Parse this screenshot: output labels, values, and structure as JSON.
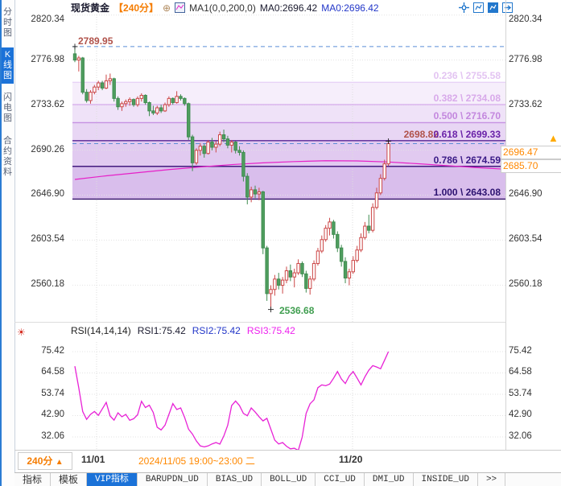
{
  "colors": {
    "accent_blue": "#1b72d8",
    "orange": "#ff8800",
    "period_orange": "#f57c00",
    "up_red": "#cc4747",
    "down_green": "#4f9e5f",
    "down_green_stroke": "#3f8c50",
    "ma_magenta": "#e620c8",
    "rsi_magenta": "#e822d6",
    "dashed_blue": "#5b8dd6",
    "swing_red": "#b0524a",
    "swing_green": "#3f9e4f",
    "grid": "#e3e3e3"
  },
  "sidebar": {
    "items": [
      {
        "label": "分时图",
        "active": false
      },
      {
        "label": "K线图",
        "active": true
      },
      {
        "label": "闪电图",
        "active": false
      },
      {
        "label": "合约资料",
        "active": false
      }
    ]
  },
  "header": {
    "symbol": "现货黄金",
    "period": "【240分】",
    "plus_icon": "⊕",
    "ma_label": "MA1(0,0,200,0)",
    "ma0_a": "MA0:2696.42",
    "ma0_b": "MA0:2696.42",
    "toolbar_icons": [
      "crosshair-icon",
      "zoom-area-icon",
      "zoom-in-icon",
      "shift-right-icon"
    ]
  },
  "price_tags": {
    "swing_high": "2789.95",
    "last_high": "2698.82",
    "swing_low": "2536.68",
    "current_price": "2696.47",
    "secondary_price": "2685.70",
    "arrow": "▲"
  },
  "rsi_header": {
    "params": "RSI(14,14,14)",
    "rsi1": "RSI1:75.42",
    "rsi2": "RSI2:75.42",
    "rsi3": "RSI3:75.42",
    "settings_icon": "☀"
  },
  "xaxis": {
    "period_label": "240分",
    "period_arrow": "▲",
    "left": "11/01",
    "mid": "2024/11/05 19:00~23:00 二",
    "right": "11/20"
  },
  "tabs": [
    {
      "label": "指标",
      "active": false
    },
    {
      "label": "模板",
      "active": false
    },
    {
      "label": "VIP指标",
      "active": true
    },
    {
      "label": "BARUPDN_UD",
      "active": false
    },
    {
      "label": "BIAS_UD",
      "active": false
    },
    {
      "label": "BOLL_UD",
      "active": false
    },
    {
      "label": "CCI_UD",
      "active": false
    },
    {
      "label": "DMI_UD",
      "active": false
    },
    {
      "label": "INSIDE_UD",
      "active": false
    },
    {
      "label": ">>",
      "active": false
    }
  ],
  "chart_data": {
    "type": "candlestick+rsi",
    "title": "现货黄金 240分",
    "main": {
      "y_axis_labels": [
        "2820.34",
        "2776.98",
        "2733.62",
        "2690.26",
        "2646.90",
        "2603.54",
        "2560.18"
      ],
      "y_axis_right_labels": [
        "2820.34",
        "2776.98",
        "2733.62",
        "2646.90",
        "2603.54",
        "2560.18"
      ],
      "x_axis_labels": [
        "11/01",
        "11/20"
      ],
      "swing_high": 2789.95,
      "swing_low": 2536.68,
      "current_price": 2696.47,
      "secondary_price": 2685.7,
      "last_high": 2698.82,
      "fib_levels": [
        {
          "ratio": "0.236",
          "price": "2755.58",
          "value": 2755.58,
          "line": "#e8d2f6",
          "text": "#e3c4f2",
          "fill": "#f6eefb"
        },
        {
          "ratio": "0.382",
          "price": "2734.08",
          "value": 2734.08,
          "line": "#dab4ee",
          "text": "#d8a9ea",
          "fill": "#efe2f8"
        },
        {
          "ratio": "0.500",
          "price": "2716.70",
          "value": 2716.7,
          "line": "#c691e2",
          "text": "#c387de",
          "fill": "#e8d6f4"
        },
        {
          "ratio": "0.618",
          "price": "2699.33",
          "value": 2699.33,
          "line": "#5a2596",
          "text": "#6a22a8",
          "fill": "#e1caf0"
        },
        {
          "ratio": "0.786",
          "price": "2674.59",
          "value": 2674.59,
          "line": "#42197e",
          "text": "#3a1a86",
          "fill": "#d9beec"
        },
        {
          "ratio": "1.000",
          "price": "2643.08",
          "value": 2643.08,
          "line": "#321068",
          "text": "#2c1270",
          "fill": null
        }
      ],
      "candles": [
        [
          2783,
          2789.95,
          2775,
          2777
        ],
        [
          2777,
          2781,
          2766,
          2779
        ],
        [
          2779,
          2780,
          2744,
          2746
        ],
        [
          2746,
          2749,
          2736,
          2738
        ],
        [
          2738,
          2748,
          2735,
          2746
        ],
        [
          2746,
          2753,
          2744,
          2751
        ],
        [
          2751,
          2757,
          2748,
          2755
        ],
        [
          2755,
          2757,
          2748,
          2750
        ],
        [
          2750,
          2763,
          2749,
          2757
        ],
        [
          2757,
          2764,
          2753,
          2759
        ],
        [
          2759,
          2760,
          2737,
          2740
        ],
        [
          2740,
          2742,
          2729,
          2732
        ],
        [
          2732,
          2737,
          2728,
          2735
        ],
        [
          2735,
          2739,
          2732,
          2737
        ],
        [
          2737,
          2741,
          2733,
          2739
        ],
        [
          2739,
          2740,
          2732,
          2734
        ],
        [
          2734,
          2742,
          2732,
          2740
        ],
        [
          2740,
          2745,
          2737,
          2743
        ],
        [
          2743,
          2744,
          2734,
          2736
        ],
        [
          2736,
          2737,
          2723,
          2728
        ],
        [
          2728,
          2733,
          2724,
          2726
        ],
        [
          2726,
          2733,
          2724,
          2731
        ],
        [
          2731,
          2734,
          2726,
          2728
        ],
        [
          2728,
          2736,
          2727,
          2734
        ],
        [
          2734,
          2742,
          2732,
          2740
        ],
        [
          2740,
          2741,
          2734,
          2736
        ],
        [
          2736,
          2747,
          2735,
          2742
        ],
        [
          2742,
          2744,
          2738,
          2740
        ],
        [
          2740,
          2741,
          2733,
          2735
        ],
        [
          2735,
          2736,
          2700,
          2703
        ],
        [
          2703,
          2705,
          2670,
          2678
        ],
        [
          2678,
          2692,
          2676,
          2690
        ],
        [
          2690,
          2697,
          2685,
          2694
        ],
        [
          2694,
          2696,
          2683,
          2687
        ],
        [
          2687,
          2700,
          2686,
          2698
        ],
        [
          2698,
          2702,
          2690,
          2693
        ],
        [
          2693,
          2699,
          2688,
          2696
        ],
        [
          2696,
          2708,
          2694,
          2705
        ],
        [
          2705,
          2710,
          2698,
          2701
        ],
        [
          2701,
          2704,
          2692,
          2695
        ],
        [
          2695,
          2700,
          2688,
          2698
        ],
        [
          2698,
          2699,
          2687,
          2690
        ],
        [
          2690,
          2694,
          2685,
          2688
        ],
        [
          2688,
          2690,
          2660,
          2665
        ],
        [
          2665,
          2668,
          2638,
          2645
        ],
        [
          2645,
          2655,
          2640,
          2652
        ],
        [
          2652,
          2656,
          2644,
          2648
        ],
        [
          2648,
          2654,
          2642,
          2650
        ],
        [
          2650,
          2651,
          2590,
          2596
        ],
        [
          2596,
          2598,
          2545,
          2552
        ],
        [
          2552,
          2560,
          2536.68,
          2556
        ],
        [
          2556,
          2570,
          2550,
          2566
        ],
        [
          2566,
          2572,
          2556,
          2560
        ],
        [
          2560,
          2568,
          2552,
          2565
        ],
        [
          2565,
          2578,
          2562,
          2574
        ],
        [
          2574,
          2580,
          2564,
          2568
        ],
        [
          2568,
          2576,
          2558,
          2572
        ],
        [
          2572,
          2585,
          2570,
          2581
        ],
        [
          2581,
          2583,
          2568,
          2571
        ],
        [
          2571,
          2574,
          2553,
          2557
        ],
        [
          2557,
          2569,
          2551,
          2566
        ],
        [
          2566,
          2584,
          2564,
          2581
        ],
        [
          2581,
          2596,
          2579,
          2593
        ],
        [
          2593,
          2608,
          2591,
          2604
        ],
        [
          2604,
          2618,
          2602,
          2615
        ],
        [
          2615,
          2625,
          2608,
          2621
        ],
        [
          2621,
          2623,
          2605,
          2609
        ],
        [
          2609,
          2612,
          2592,
          2596
        ],
        [
          2596,
          2599,
          2578,
          2583
        ],
        [
          2583,
          2587,
          2562,
          2567
        ],
        [
          2567,
          2576,
          2560,
          2573
        ],
        [
          2573,
          2588,
          2571,
          2584
        ],
        [
          2584,
          2598,
          2582,
          2594
        ],
        [
          2594,
          2610,
          2592,
          2606
        ],
        [
          2606,
          2621,
          2604,
          2617
        ],
        [
          2617,
          2628,
          2610,
          2613
        ],
        [
          2613,
          2639,
          2611,
          2635
        ],
        [
          2635,
          2654,
          2633,
          2649
        ],
        [
          2649,
          2667,
          2647,
          2663
        ],
        [
          2663,
          2681,
          2661,
          2677
        ],
        [
          2677,
          2698.82,
          2675,
          2696.47
        ]
      ],
      "ma200": [
        [
          0,
          2662
        ],
        [
          8,
          2665.5
        ],
        [
          16,
          2668.5
        ],
        [
          24,
          2671.5
        ],
        [
          32,
          2674
        ],
        [
          40,
          2676.3
        ],
        [
          48,
          2678
        ],
        [
          56,
          2679.2
        ],
        [
          64,
          2680
        ],
        [
          72,
          2679.8
        ],
        [
          80,
          2678.8
        ],
        [
          88,
          2677
        ],
        [
          96,
          2675
        ],
        [
          102,
          2673.5
        ],
        [
          110,
          2671.8
        ]
      ]
    },
    "rsi": {
      "y_axis_labels": [
        "75.42",
        "64.58",
        "53.74",
        "42.90",
        "32.06"
      ],
      "values": [
        68,
        57,
        45,
        41,
        43.5,
        45,
        43,
        46.3,
        49.6,
        42.7,
        40.6,
        44.3,
        42.3,
        43.5,
        40.5,
        41.3,
        43.3,
        50.2,
        47,
        48.2,
        44.5,
        37,
        35.6,
        38,
        43.5,
        49,
        46,
        46.8,
        42,
        36,
        33.5,
        30,
        27.5,
        27,
        27.5,
        28.5,
        29.2,
        28.4,
        32.5,
        38,
        48,
        50.3,
        48,
        44,
        42.8,
        46.8,
        44.7,
        42.3,
        40.2,
        41.5,
        36,
        30.4,
        28.5,
        29.2,
        27.3,
        26,
        26.3,
        25.2,
        32,
        44,
        48.9,
        50.9,
        57.1,
        58.5,
        58.1,
        58.9,
        61.9,
        65.3,
        61.5,
        59.2,
        63,
        65.3,
        62,
        58.5,
        62.6,
        66,
        68.3,
        67.6,
        66.7,
        71,
        75.42
      ]
    }
  }
}
